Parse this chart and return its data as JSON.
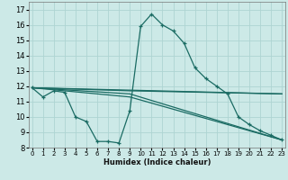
{
  "title": "",
  "xlabel": "Humidex (Indice chaleur)",
  "background_color": "#cce9e7",
  "grid_color": "#aed4d2",
  "line_color": "#1a6b63",
  "series_main": {
    "x": [
      0,
      1,
      2,
      3,
      4,
      5,
      6,
      7,
      8,
      9,
      10,
      11,
      12,
      13,
      14,
      15,
      16,
      17,
      18,
      19,
      20,
      21,
      22,
      23
    ],
    "y": [
      11.9,
      11.3,
      11.7,
      11.6,
      10.0,
      9.7,
      8.4,
      8.4,
      8.3,
      10.4,
      15.9,
      16.7,
      16.0,
      15.6,
      14.8,
      13.2,
      12.5,
      12.0,
      11.5,
      10.0,
      9.5,
      9.1,
      8.8,
      8.5
    ]
  },
  "series_flat": {
    "x": [
      0,
      23
    ],
    "y": [
      11.9,
      11.5
    ]
  },
  "series_line2": {
    "x": [
      0,
      9,
      23
    ],
    "y": [
      11.9,
      11.7,
      11.5
    ]
  },
  "series_line3": {
    "x": [
      0,
      9,
      23
    ],
    "y": [
      11.9,
      11.5,
      8.5
    ]
  },
  "series_line4": {
    "x": [
      0,
      9,
      23
    ],
    "y": [
      11.9,
      11.3,
      8.5
    ]
  },
  "xlim": [
    -0.3,
    23.3
  ],
  "ylim": [
    8,
    17.5
  ],
  "yticks": [
    8,
    9,
    10,
    11,
    12,
    13,
    14,
    15,
    16,
    17
  ],
  "xticks": [
    0,
    1,
    2,
    3,
    4,
    5,
    6,
    7,
    8,
    9,
    10,
    11,
    12,
    13,
    14,
    15,
    16,
    17,
    18,
    19,
    20,
    21,
    22,
    23
  ]
}
